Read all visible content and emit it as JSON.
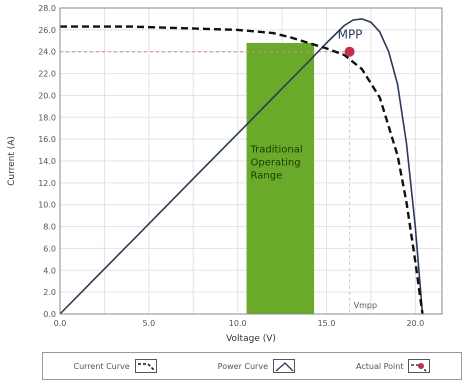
{
  "chart_data": {
    "type": "line",
    "xlabel": "Voltage (V)",
    "ylabel": "Current (A)",
    "xlim": [
      0,
      21.5
    ],
    "ylim": [
      0,
      28
    ],
    "x_ticks": [
      "0.0",
      "5.0",
      "10.0",
      "15.0",
      "20.0"
    ],
    "x_tick_values": [
      0,
      5,
      10,
      15,
      20
    ],
    "y_ticks": [
      "0.0",
      "2.0",
      "4.0",
      "6.0",
      "8.0",
      "10.0",
      "12.0",
      "14.0",
      "16.0",
      "18.0",
      "20.0",
      "22.0",
      "24.0",
      "26.0",
      "28.0"
    ],
    "y_tick_values": [
      0,
      2,
      4,
      6,
      8,
      10,
      12,
      14,
      16,
      18,
      20,
      22,
      24,
      26,
      28
    ],
    "grid": true,
    "series": [
      {
        "name": "Current Curve",
        "style": "dashed",
        "color": "#111111",
        "x": [
          0,
          2,
          4,
          6,
          8,
          10,
          12,
          13,
          14,
          15,
          16,
          17,
          18,
          19,
          19.5,
          20,
          20.4
        ],
        "y": [
          26.3,
          26.3,
          26.3,
          26.2,
          26.1,
          26.0,
          25.7,
          25.3,
          24.8,
          24.3,
          23.7,
          22.4,
          19.8,
          14.5,
          10.2,
          4.8,
          0
        ]
      },
      {
        "name": "Power Curve",
        "style": "solid",
        "color": "#2b3a5c",
        "x": [
          0,
          2,
          4,
          6,
          8,
          10,
          12,
          14,
          15,
          16,
          16.5,
          17,
          17.5,
          18,
          18.5,
          19,
          19.5,
          20,
          20.4
        ],
        "y": [
          0,
          3.3,
          6.6,
          9.9,
          13.2,
          16.5,
          19.8,
          23.1,
          24.8,
          26.4,
          26.9,
          27.0,
          26.7,
          25.8,
          24.0,
          21.0,
          15.6,
          8.0,
          0
        ]
      }
    ],
    "shaded_region": {
      "x0": 10.5,
      "x1": 14.3,
      "label": "Traditional Operating Range",
      "color": "#6aaa2a"
    },
    "mpp": {
      "x": 16.3,
      "y": 24.0,
      "label": "MPP",
      "color": "#c0304a"
    },
    "vmpp_label": "Vmpp",
    "legend": [
      {
        "label": "Current Curve"
      },
      {
        "label": "Power Curve"
      },
      {
        "label": "Actual Point"
      }
    ]
  }
}
